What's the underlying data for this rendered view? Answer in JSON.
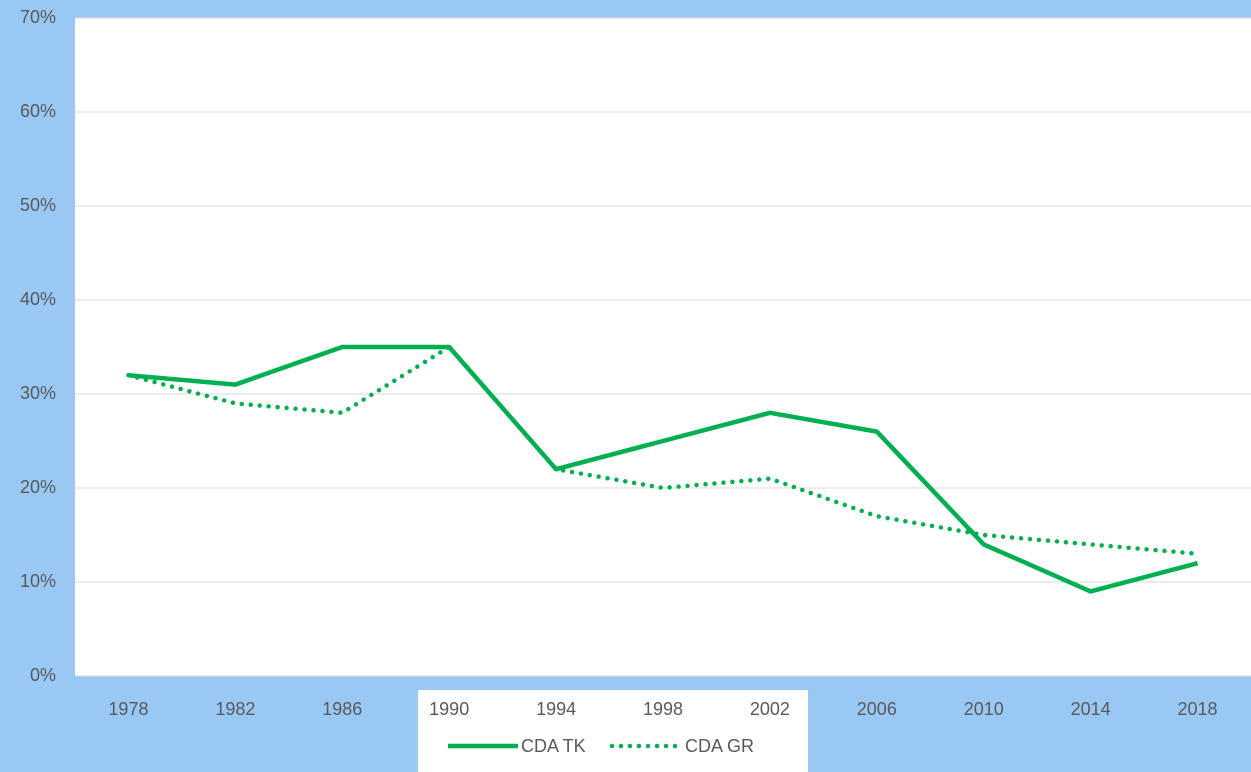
{
  "chart_data": {
    "type": "line",
    "categories": [
      "1978",
      "1982",
      "1986",
      "1990",
      "1994",
      "1998",
      "2002",
      "2006",
      "2010",
      "2014",
      "2018"
    ],
    "series": [
      {
        "name": "CDA TK",
        "color": "#00b050",
        "dash": "solid",
        "values": [
          32,
          31,
          35,
          35,
          22,
          25,
          28,
          26,
          14,
          9,
          12
        ]
      },
      {
        "name": "CDA GR",
        "color": "#00b050",
        "dash": "dotted",
        "values": [
          32,
          29,
          28,
          35,
          22,
          20,
          21,
          17,
          15,
          14,
          13
        ]
      }
    ],
    "ylim": [
      0,
      70
    ],
    "yticks": [
      {
        "value": 0,
        "label": "0%"
      },
      {
        "value": 10,
        "label": "10%"
      },
      {
        "value": 20,
        "label": "20%"
      },
      {
        "value": 30,
        "label": "30%"
      },
      {
        "value": 40,
        "label": "40%"
      },
      {
        "value": 50,
        "label": "50%"
      },
      {
        "value": 60,
        "label": "60%"
      },
      {
        "value": 70,
        "label": "70%"
      }
    ],
    "grid": true,
    "legend": "bottom"
  }
}
